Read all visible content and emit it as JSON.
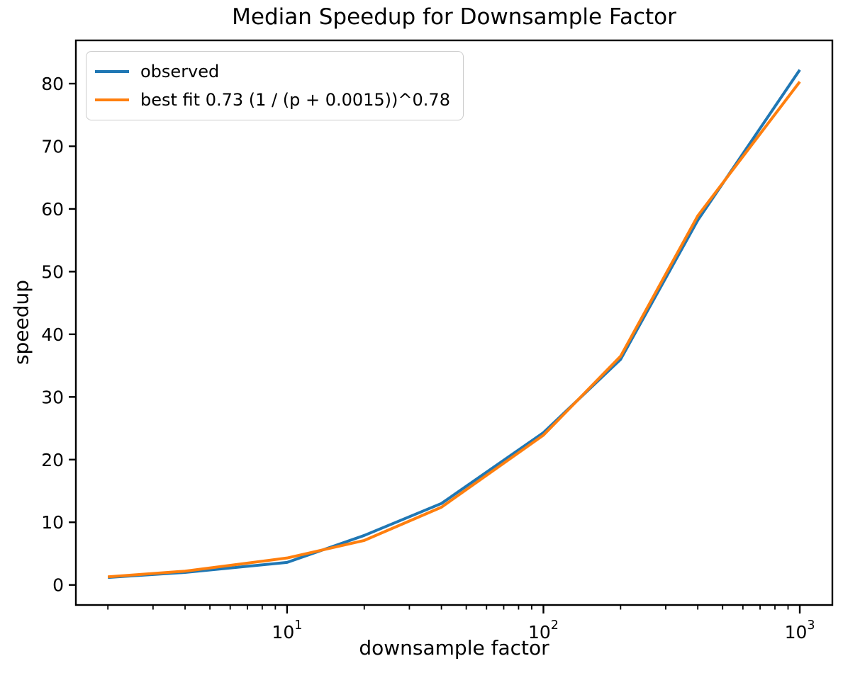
{
  "figure": {
    "title": "Median Speedup for Downsample Factor",
    "xlabel": "downsample factor",
    "ylabel": "speedup"
  },
  "legend": {
    "position": "upper left",
    "items": [
      {
        "label": "observed",
        "color": "#1f77b4"
      },
      {
        "label": "best fit 0.73 (1 / (p + 0.0015))^0.78",
        "color": "#ff7f0e"
      }
    ]
  },
  "chart_data": {
    "type": "line",
    "title": "Median Speedup for Downsample Factor",
    "xlabel": "downsample factor",
    "ylabel": "speedup",
    "xscale": "log",
    "grid": false,
    "legend_position": "upper left",
    "x": [
      2,
      4,
      10,
      20,
      40,
      100,
      200,
      400,
      1000
    ],
    "series": [
      {
        "name": "observed",
        "color": "#1f77b4",
        "values": [
          1.2,
          2.0,
          3.6,
          7.9,
          13.0,
          24.3,
          36.0,
          58.2,
          82.2
        ]
      },
      {
        "name": "best fit 0.73 (1 / (p + 0.0015))^0.78",
        "color": "#ff7f0e",
        "values": [
          1.3,
          2.2,
          4.3,
          7.1,
          12.4,
          23.9,
          36.5,
          58.9,
          80.3
        ]
      }
    ],
    "xticks": [
      10,
      100,
      1000
    ],
    "yticks": [
      0,
      10,
      20,
      30,
      40,
      50,
      60,
      70,
      80
    ],
    "xlim": [
      1.5,
      1340
    ],
    "ylim": [
      -3.2,
      86.9
    ]
  }
}
